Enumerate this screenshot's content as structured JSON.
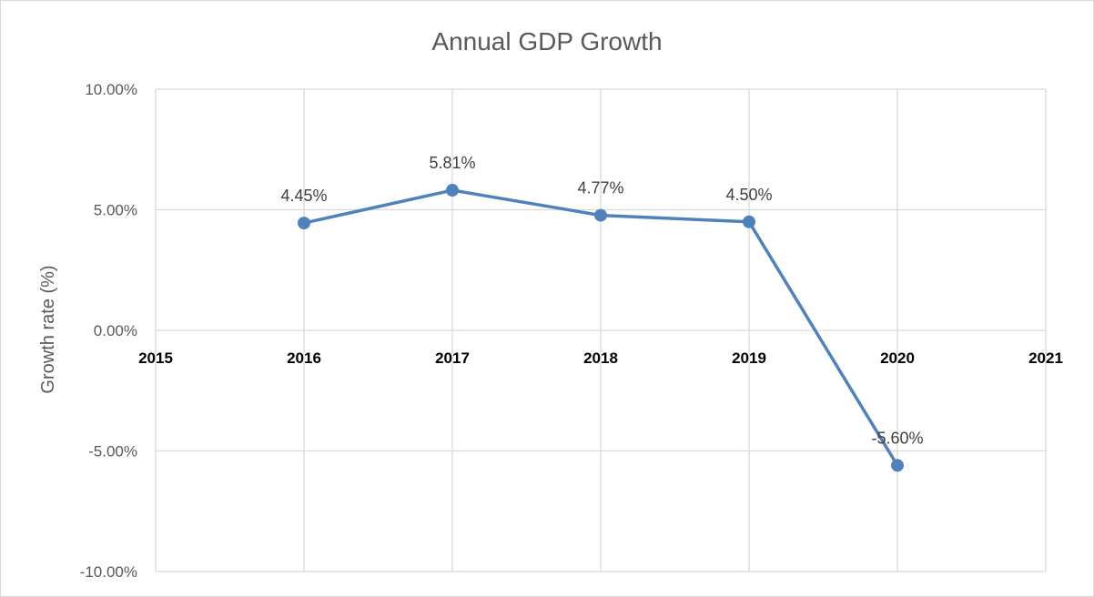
{
  "chart_data": {
    "type": "scatter",
    "title": "Annual GDP Growth",
    "xlabel": "",
    "ylabel": "Growth rate (%)",
    "x": [
      2016,
      2017,
      2018,
      2019,
      2020
    ],
    "y": [
      4.45,
      5.81,
      4.77,
      4.5,
      -5.6
    ],
    "data_labels": [
      "4.45%",
      "5.81%",
      "4.77%",
      "4.50%",
      "-5.60%"
    ],
    "xlim": [
      2015,
      2021
    ],
    "xticks": [
      2015,
      2016,
      2017,
      2018,
      2019,
      2020,
      2021
    ],
    "xtick_labels": [
      "2015",
      "2016",
      "2017",
      "2018",
      "2019",
      "2020",
      "2021"
    ],
    "ylim": [
      -10,
      10
    ],
    "yticks": [
      -10,
      -5,
      0,
      5,
      10
    ],
    "ytick_labels": [
      "-10.00%",
      "-5.00%",
      "0.00%",
      "5.00%",
      "10.00%"
    ],
    "grid": true,
    "lines_connect_points": true,
    "markers": "circle",
    "legend": false,
    "colors": {
      "series": "#4f81bd",
      "grid": "#d9d9d9"
    }
  }
}
